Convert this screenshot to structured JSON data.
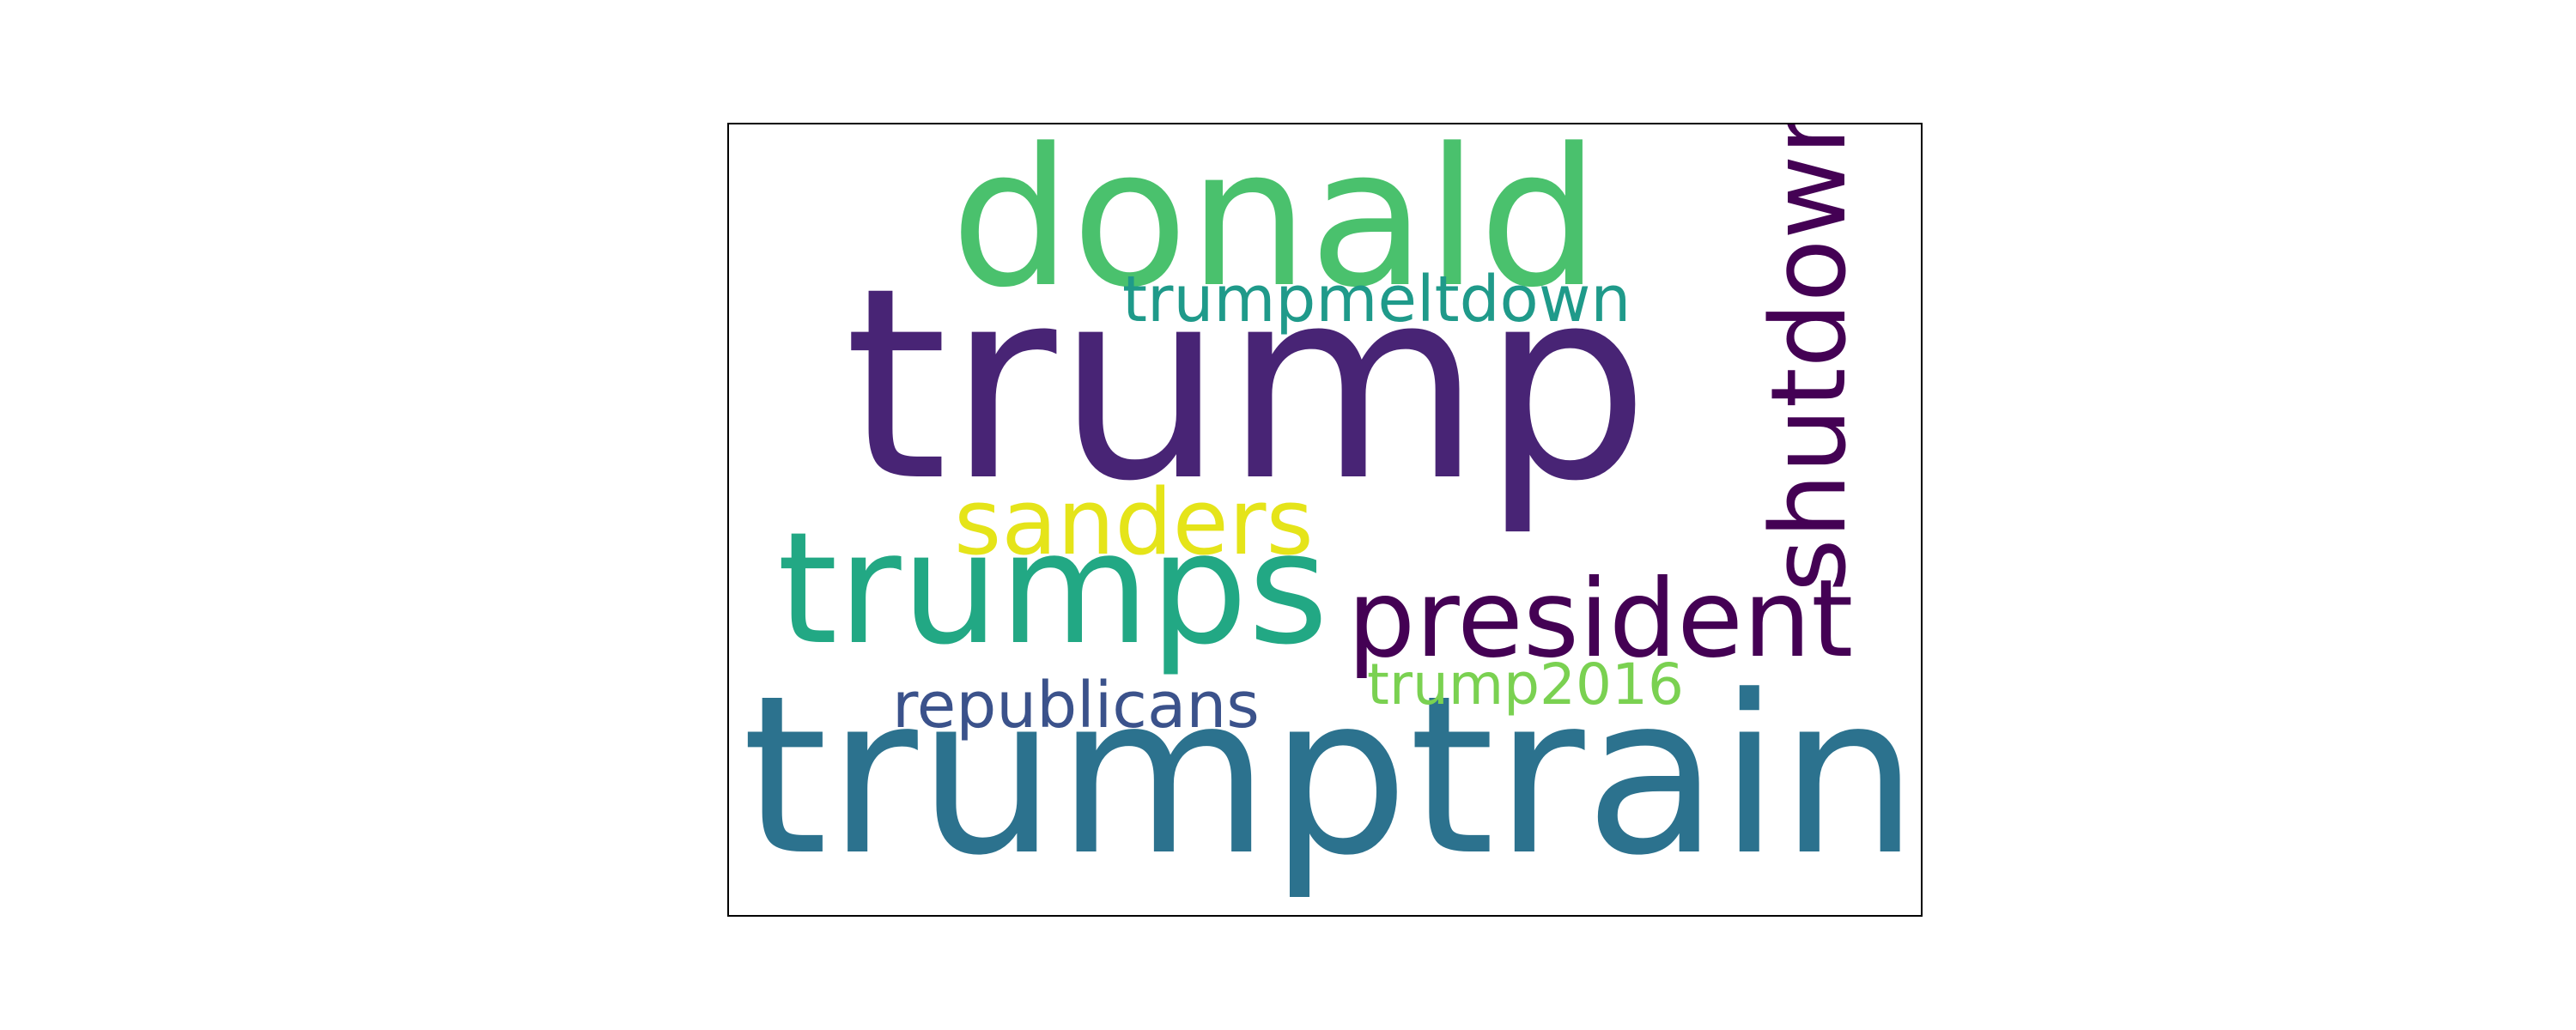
{
  "wordcloud": {
    "words": [
      {
        "text": "trump",
        "color": "#482475"
      },
      {
        "text": "trumptrain",
        "color": "#2c728e"
      },
      {
        "text": "donald",
        "color": "#4ac16d"
      },
      {
        "text": "trumps",
        "color": "#22a884"
      },
      {
        "text": "president",
        "color": "#440154"
      },
      {
        "text": "shutdown",
        "color": "#440154"
      },
      {
        "text": "sanders",
        "color": "#e5e419"
      },
      {
        "text": "trumpmeltdown",
        "color": "#1f9a8a"
      },
      {
        "text": "republicans",
        "color": "#3b528b"
      },
      {
        "text": "trump2016",
        "color": "#7ad151"
      }
    ]
  }
}
